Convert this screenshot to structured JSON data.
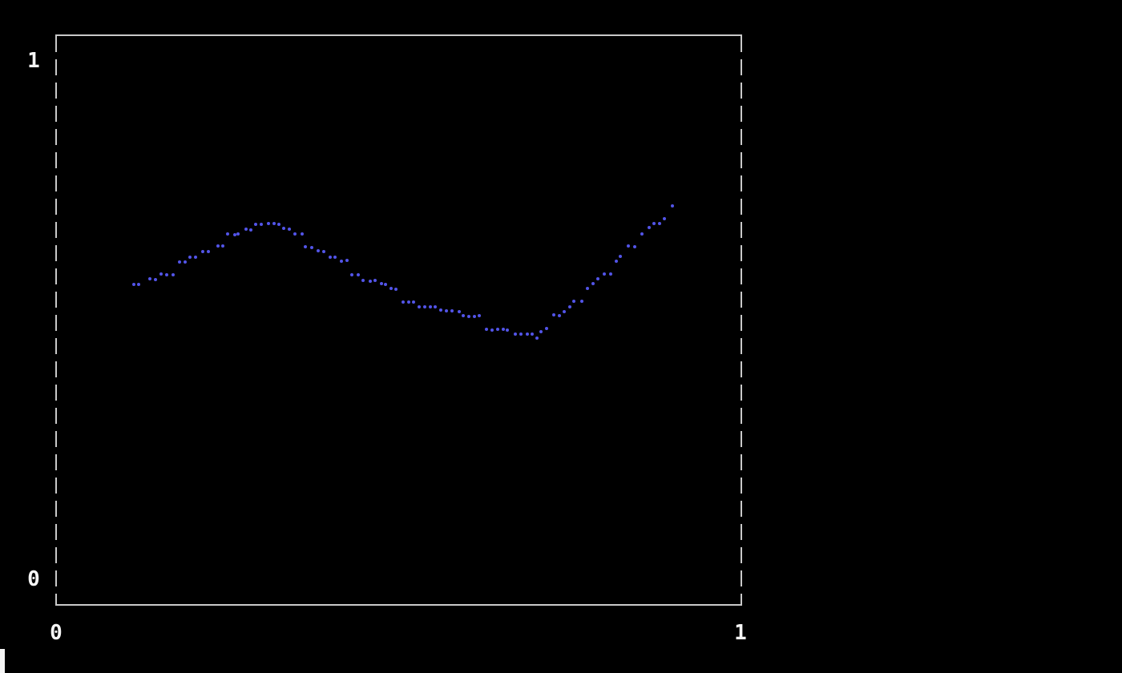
{
  "screen": {
    "background": "#000000"
  },
  "chart_data": {
    "type": "scatter",
    "title": "",
    "xlabel": "",
    "ylabel": "",
    "xlim": [
      0,
      1
    ],
    "ylim": [
      0,
      1
    ],
    "x_tick_labels": [
      "0",
      "1"
    ],
    "y_tick_labels": [
      "0",
      "1"
    ],
    "grid": false,
    "legend_position": "none",
    "frame_style": "solid top/bottom, dashed left/right",
    "point_color": "#5254e8",
    "frame_color": "#c9c9c9",
    "label_color": "#f5f5f5",
    "series": [
      {
        "name": "series-1",
        "points": [
          [
            0.113,
            0.569
          ],
          [
            0.121,
            0.569
          ],
          [
            0.137,
            0.58
          ],
          [
            0.145,
            0.578
          ],
          [
            0.153,
            0.589
          ],
          [
            0.162,
            0.587
          ],
          [
            0.171,
            0.587
          ],
          [
            0.18,
            0.612
          ],
          [
            0.188,
            0.612
          ],
          [
            0.195,
            0.621
          ],
          [
            0.204,
            0.621
          ],
          [
            0.214,
            0.632
          ],
          [
            0.222,
            0.632
          ],
          [
            0.236,
            0.643
          ],
          [
            0.244,
            0.643
          ],
          [
            0.251,
            0.666
          ],
          [
            0.261,
            0.665
          ],
          [
            0.266,
            0.666
          ],
          [
            0.278,
            0.675
          ],
          [
            0.285,
            0.674
          ],
          [
            0.291,
            0.685
          ],
          [
            0.3,
            0.685
          ],
          [
            0.31,
            0.686
          ],
          [
            0.319,
            0.686
          ],
          [
            0.326,
            0.685
          ],
          [
            0.332,
            0.677
          ],
          [
            0.341,
            0.675
          ],
          [
            0.349,
            0.666
          ],
          [
            0.359,
            0.666
          ],
          [
            0.364,
            0.641
          ],
          [
            0.373,
            0.64
          ],
          [
            0.383,
            0.634
          ],
          [
            0.391,
            0.632
          ],
          [
            0.401,
            0.621
          ],
          [
            0.408,
            0.621
          ],
          [
            0.417,
            0.614
          ],
          [
            0.425,
            0.615
          ],
          [
            0.432,
            0.587
          ],
          [
            0.442,
            0.587
          ],
          [
            0.449,
            0.577
          ],
          [
            0.459,
            0.575
          ],
          [
            0.466,
            0.577
          ],
          [
            0.475,
            0.57
          ],
          [
            0.481,
            0.569
          ],
          [
            0.49,
            0.561
          ],
          [
            0.497,
            0.56
          ],
          [
            0.507,
            0.535
          ],
          [
            0.515,
            0.535
          ],
          [
            0.522,
            0.535
          ],
          [
            0.53,
            0.526
          ],
          [
            0.539,
            0.526
          ],
          [
            0.547,
            0.526
          ],
          [
            0.554,
            0.526
          ],
          [
            0.562,
            0.519
          ],
          [
            0.57,
            0.518
          ],
          [
            0.578,
            0.518
          ],
          [
            0.589,
            0.516
          ],
          [
            0.595,
            0.509
          ],
          [
            0.603,
            0.507
          ],
          [
            0.611,
            0.507
          ],
          [
            0.618,
            0.509
          ],
          [
            0.629,
            0.482
          ],
          [
            0.637,
            0.481
          ],
          [
            0.645,
            0.482
          ],
          [
            0.653,
            0.482
          ],
          [
            0.659,
            0.481
          ],
          [
            0.671,
            0.473
          ],
          [
            0.679,
            0.473
          ],
          [
            0.688,
            0.473
          ],
          [
            0.695,
            0.473
          ],
          [
            0.703,
            0.465
          ],
          [
            0.709,
            0.478
          ],
          [
            0.717,
            0.484
          ],
          [
            0.727,
            0.51
          ],
          [
            0.735,
            0.509
          ],
          [
            0.742,
            0.516
          ],
          [
            0.751,
            0.526
          ],
          [
            0.757,
            0.536
          ],
          [
            0.768,
            0.536
          ],
          [
            0.776,
            0.561
          ],
          [
            0.784,
            0.57
          ],
          [
            0.792,
            0.58
          ],
          [
            0.801,
            0.589
          ],
          [
            0.81,
            0.589
          ],
          [
            0.818,
            0.614
          ],
          [
            0.824,
            0.623
          ],
          [
            0.836,
            0.643
          ],
          [
            0.845,
            0.641
          ],
          [
            0.856,
            0.666
          ],
          [
            0.867,
            0.679
          ],
          [
            0.873,
            0.686
          ],
          [
            0.882,
            0.686
          ],
          [
            0.889,
            0.696
          ],
          [
            0.9,
            0.72
          ]
        ]
      }
    ]
  },
  "terminal": {
    "cursor_visible": true
  }
}
